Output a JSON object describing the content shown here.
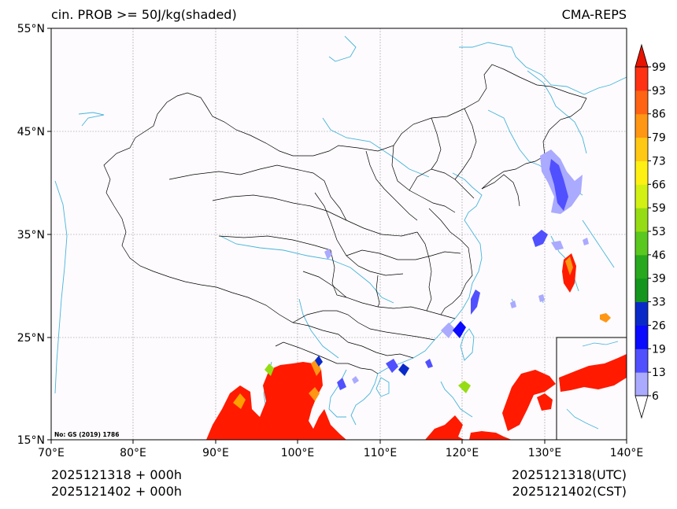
{
  "header": {
    "left_title": "cin. PROB >= 50J/kg(shaded)",
    "right_title": "CMA-REPS"
  },
  "footer": {
    "init_line1": "2025121318  +  000h",
    "init_line2": "2025121402  +  000h",
    "valid_line1": "2025121318(UTC)",
    "valid_line2": "2025121402(CST)"
  },
  "map": {
    "projection": "PlateCarree",
    "lon_range": [
      70,
      140
    ],
    "lat_range": [
      15,
      55
    ],
    "lon_ticks": [
      "70°E",
      "80°E",
      "90°E",
      "100°E",
      "110°E",
      "120°E",
      "130°E",
      "140°E"
    ],
    "lat_ticks": [
      "55°N",
      "45°N",
      "35°N",
      "25°N",
      "15°N"
    ],
    "grid": true,
    "map_note": "No: GS (2019) 1786",
    "inset": "South China Sea islands (bottom-right)"
  },
  "colorbar": {
    "levels": [
      "6",
      "13",
      "19",
      "26",
      "33",
      "39",
      "46",
      "53",
      "59",
      "66",
      "73",
      "79",
      "86",
      "93",
      "99"
    ],
    "colors": [
      "#aaaaff",
      "#5050ff",
      "#0a0aff",
      "#0a2ac8",
      "#14961e",
      "#28a81e",
      "#5ac81e",
      "#96dc14",
      "#d2f014",
      "#fff014",
      "#ffc814",
      "#ff9614",
      "#ff6414",
      "#ff3214",
      "#e61400"
    ],
    "extend": "both"
  },
  "colors": {
    "coastline": "#46b4dc",
    "borders": "#000000",
    "grid": "#808080"
  }
}
